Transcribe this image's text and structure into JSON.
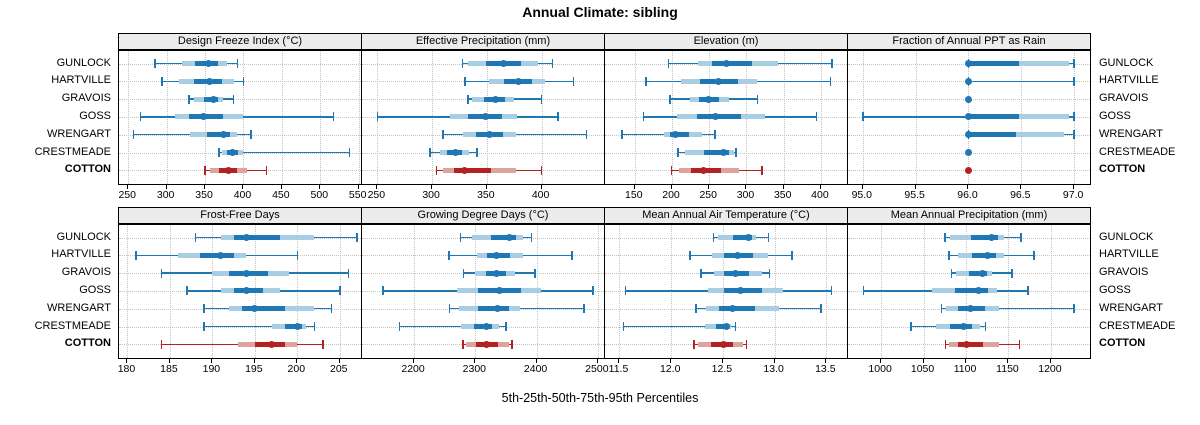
{
  "title": "Annual Climate: sibling",
  "caption": "5th-25th-50th-75th-95th Percentiles",
  "sites": [
    {
      "label": "GUNLOCK",
      "emphasis": false
    },
    {
      "label": "HARTVILLE",
      "emphasis": false
    },
    {
      "label": "GRAVOIS",
      "emphasis": false
    },
    {
      "label": "GOSS",
      "emphasis": false
    },
    {
      "label": "WRENGART",
      "emphasis": false
    },
    {
      "label": "CRESTMEADE",
      "emphasis": false
    },
    {
      "label": "COTTON",
      "emphasis": true
    }
  ],
  "colors": {
    "series_blue": "#1f77b4",
    "series_blue_light": "#a9cee3",
    "series_red": "#b22222",
    "series_red_light": "#dda49e",
    "grid": "#c3c3c3",
    "strip_bg": "#ececec",
    "border": "#000000"
  },
  "chart_data": {
    "type": "dotplot",
    "layout": {
      "rows": 2,
      "cols": 4,
      "grid": "dotted",
      "legend": "none"
    },
    "percentiles_order": [
      "p5",
      "p25",
      "p50",
      "p75",
      "p95"
    ],
    "sites_order": [
      "GUNLOCK",
      "HARTVILLE",
      "GRAVOIS",
      "GOSS",
      "WRENGART",
      "CRESTMEADE",
      "COTTON"
    ],
    "panels": [
      {
        "title": "Design Freeze Index (°C)",
        "row": 0,
        "col": 0,
        "domain": [
          238,
          553
        ],
        "tick_values": [
          250,
          300,
          350,
          400,
          450,
          500,
          550
        ],
        "tick_labels": [
          "250",
          "300",
          "350",
          "400",
          "450",
          "500",
          "550"
        ],
        "data": [
          [
            285,
            320,
            355,
            378,
            392
          ],
          [
            294,
            316,
            356,
            388,
            400
          ],
          [
            329,
            336,
            361,
            373,
            387
          ],
          [
            266,
            311,
            348,
            400,
            517
          ],
          [
            257,
            330,
            374,
            392,
            410
          ],
          [
            368,
            372,
            386,
            400,
            538
          ],
          [
            350,
            357,
            380,
            404,
            430
          ]
        ]
      },
      {
        "title": "Effective Precipitation (mm)",
        "row": 0,
        "col": 1,
        "domain": [
          236,
          457
        ],
        "tick_values": [
          250,
          300,
          350,
          400
        ],
        "tick_labels": [
          "250",
          "300",
          "350",
          "400"
        ],
        "data": [
          [
            328,
            333,
            365,
            397,
            410
          ],
          [
            330,
            352,
            379,
            403,
            429
          ],
          [
            333,
            336,
            358,
            375,
            400
          ],
          [
            250,
            316,
            349,
            378,
            415
          ],
          [
            310,
            328,
            352,
            377,
            441
          ],
          [
            298,
            307,
            321,
            334,
            341
          ],
          [
            304,
            310,
            330,
            377,
            400
          ]
        ]
      },
      {
        "title": "Elevation (m)",
        "row": 0,
        "col": 2,
        "domain": [
          110,
          435
        ],
        "tick_values": [
          150,
          200,
          250,
          300,
          350,
          400
        ],
        "tick_labels": [
          "150",
          "200",
          "250",
          "300",
          "350",
          "400"
        ],
        "data": [
          [
            195,
            235,
            273,
            343,
            415
          ],
          [
            165,
            212,
            262,
            314,
            413
          ],
          [
            197,
            224,
            249,
            276,
            315
          ],
          [
            162,
            207,
            259,
            325,
            394
          ],
          [
            133,
            189,
            205,
            240,
            258
          ],
          [
            208,
            218,
            269,
            283,
            286
          ],
          [
            199,
            210,
            242,
            290,
            321
          ]
        ]
      },
      {
        "title": "Fraction of Annual PPT as Rain",
        "row": 0,
        "col": 3,
        "domain": [
          94.86,
          97.15
        ],
        "tick_values": [
          95.0,
          95.5,
          96.0,
          96.5,
          97.0
        ],
        "tick_labels": [
          "95.0",
          "95.5",
          "96.0",
          "96.5",
          "97.0"
        ],
        "data": [
          [
            96.0,
            96.0,
            96.0,
            96.95,
            97.0
          ],
          [
            96.0,
            96.0,
            96.0,
            96.0,
            97.0
          ],
          [
            96.0,
            96.0,
            96.0,
            96.0,
            96.0
          ],
          [
            95.0,
            96.0,
            96.0,
            96.95,
            97.0
          ],
          [
            96.0,
            96.0,
            96.0,
            96.9,
            97.0
          ],
          [
            96.0,
            96.0,
            96.0,
            96.0,
            96.0
          ],
          [
            96.0,
            96.0,
            96.0,
            96.0,
            96.0
          ]
        ]
      },
      {
        "title": "Frost-Free Days",
        "row": 1,
        "col": 0,
        "domain": [
          179,
          207.5
        ],
        "tick_values": [
          180,
          185,
          190,
          195,
          200,
          205
        ],
        "tick_labels": [
          "180",
          "185",
          "190",
          "195",
          "200",
          "205"
        ],
        "data": [
          [
            188,
            191,
            194,
            202,
            207
          ],
          [
            181,
            186,
            191,
            194,
            200
          ],
          [
            184,
            190,
            194,
            199,
            206
          ],
          [
            187,
            191,
            194,
            198,
            205
          ],
          [
            189,
            192,
            195,
            202,
            204
          ],
          [
            189,
            197,
            200,
            201,
            202
          ],
          [
            184,
            193,
            197,
            200,
            203
          ]
        ]
      },
      {
        "title": "Growing Degree Days (°C)",
        "row": 1,
        "col": 1,
        "domain": [
          2115,
          2510
        ],
        "tick_values": [
          2200,
          2300,
          2400,
          2500
        ],
        "tick_labels": [
          "2200",
          "2300",
          "2400",
          "2500"
        ],
        "data": [
          [
            2276,
            2295,
            2355,
            2378,
            2392
          ],
          [
            2257,
            2303,
            2334,
            2378,
            2458
          ],
          [
            2281,
            2300,
            2334,
            2365,
            2397
          ],
          [
            2149,
            2270,
            2340,
            2408,
            2492
          ],
          [
            2258,
            2273,
            2336,
            2373,
            2477
          ],
          [
            2176,
            2276,
            2318,
            2338,
            2350
          ],
          [
            2280,
            2285,
            2318,
            2355,
            2360
          ]
        ]
      },
      {
        "title": "Mean Annual Air Temperature (°C)",
        "row": 1,
        "col": 2,
        "domain": [
          11.36,
          13.7
        ],
        "tick_values": [
          11.5,
          12.0,
          12.5,
          13.0,
          13.5
        ],
        "tick_labels": [
          "11.5",
          "12.0",
          "12.5",
          "13.0",
          "13.5"
        ],
        "data": [
          [
            12.41,
            12.45,
            12.75,
            12.82,
            12.94
          ],
          [
            12.18,
            12.39,
            12.64,
            12.94,
            13.17
          ],
          [
            12.29,
            12.41,
            12.62,
            12.88,
            12.95
          ],
          [
            11.56,
            12.36,
            12.67,
            13.08,
            13.55
          ],
          [
            12.24,
            12.34,
            12.59,
            13.04,
            13.45
          ],
          [
            11.54,
            12.33,
            12.53,
            12.58,
            12.62
          ],
          [
            12.22,
            12.26,
            12.51,
            12.69,
            12.73
          ]
        ]
      },
      {
        "title": "Mean Annual Precipitation (mm)",
        "row": 1,
        "col": 3,
        "domain": [
          961,
          1246
        ],
        "tick_values": [
          1000,
          1050,
          1100,
          1150,
          1200
        ],
        "tick_labels": [
          "1000",
          "1050",
          "1100",
          "1150",
          "1200"
        ],
        "data": [
          [
            1075,
            1081,
            1130,
            1145,
            1165
          ],
          [
            1080,
            1090,
            1125,
            1145,
            1180
          ],
          [
            1083,
            1088,
            1119,
            1131,
            1154
          ],
          [
            979,
            1060,
            1115,
            1137,
            1173
          ],
          [
            1071,
            1077,
            1105,
            1139,
            1227
          ],
          [
            1035,
            1065,
            1097,
            1117,
            1123
          ],
          [
            1076,
            1080,
            1101,
            1139,
            1163
          ]
        ]
      }
    ]
  }
}
